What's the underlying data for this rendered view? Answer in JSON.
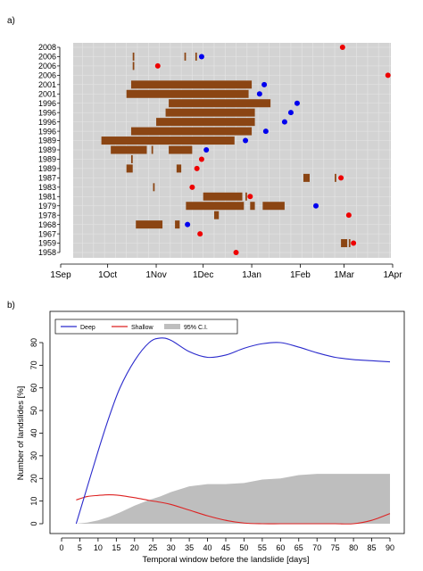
{
  "panel_labels": {
    "a": "a)",
    "b": "b)"
  },
  "colors": {
    "bar": "#8B4513",
    "bar_stripe": "#6b3210",
    "deep_point": "#0000ee",
    "shallow_point": "#ee0000",
    "panel_a_bg": "#d3d3d3",
    "panel_a_grid": "#e6e6e6",
    "deep_line": "#2a2acc",
    "shallow_line": "#dd2222",
    "ci_fill": "#bebebe"
  },
  "chart_data": [
    {
      "type": "timeline",
      "panel": "a",
      "x_axis_ticks": [
        "1Sep",
        "1Oct",
        "1Nov",
        "1Dec",
        "1Jan",
        "1Feb",
        "1Mar",
        "1Apr"
      ],
      "x_axis_tick_dates": [
        "Sep 1",
        "Oct 1",
        "Nov 1",
        "Dec 1",
        "Jan 1",
        "Feb 1",
        "Mar 1",
        "Apr 1"
      ],
      "xlim": [
        "Sep 1",
        "Apr 10"
      ],
      "grid": true,
      "rows": [
        {
          "year": "2008",
          "bars": [],
          "point": {
            "date": "Feb 28",
            "type": "shallow"
          }
        },
        {
          "year": "2006",
          "bars": [
            [
              "Oct 17",
              "Oct 18"
            ],
            [
              "Nov 19",
              "Nov 20"
            ],
            [
              "Nov 26",
              "Nov 27"
            ]
          ],
          "point": {
            "date": "Nov 30",
            "type": "deep"
          }
        },
        {
          "year": "2006",
          "bars": [
            [
              "Oct 17",
              "Oct 18"
            ]
          ],
          "point": {
            "date": "Nov 2",
            "type": "shallow"
          }
        },
        {
          "year": "2006",
          "bars": [],
          "point": {
            "date": "Mar 29",
            "type": "shallow"
          }
        },
        {
          "year": "2001",
          "bars": [
            [
              "Oct 16",
              "Jan 1"
            ]
          ],
          "point": {
            "date": "Jan 9",
            "type": "deep"
          }
        },
        {
          "year": "2001",
          "bars": [
            [
              "Oct 13",
              "Dec 30"
            ]
          ],
          "point": {
            "date": "Jan 6",
            "type": "deep"
          }
        },
        {
          "year": "1996",
          "bars": [
            [
              "Nov 9",
              "Jan 13"
            ]
          ],
          "point": {
            "date": "Jan 30",
            "type": "deep"
          }
        },
        {
          "year": "1996",
          "bars": [
            [
              "Nov 7",
              "Jan 3"
            ]
          ],
          "point": {
            "date": "Jan 26",
            "type": "deep"
          }
        },
        {
          "year": "1996",
          "bars": [
            [
              "Nov 1",
              "Jan 3"
            ]
          ],
          "point": {
            "date": "Jan 22",
            "type": "deep"
          }
        },
        {
          "year": "1996",
          "bars": [
            [
              "Oct 16",
              "Jan 1"
            ]
          ],
          "point": {
            "date": "Jan 10",
            "type": "deep"
          }
        },
        {
          "year": "1989",
          "bars": [
            [
              "Sep 27",
              "Dec 21"
            ]
          ],
          "point": {
            "date": "Dec 28",
            "type": "deep"
          }
        },
        {
          "year": "1989",
          "bars": [
            [
              "Oct 3",
              "Oct 26"
            ],
            [
              "Oct 29",
              "Oct 30"
            ],
            [
              "Nov 9",
              "Nov 24"
            ]
          ],
          "point": {
            "date": "Dec 3",
            "type": "deep"
          }
        },
        {
          "year": "1989",
          "bars": [
            [
              "Oct 16",
              "Oct 17"
            ]
          ],
          "point": {
            "date": "Nov 30",
            "type": "shallow"
          }
        },
        {
          "year": "1989",
          "bars": [
            [
              "Oct 13",
              "Oct 17"
            ],
            [
              "Nov 14",
              "Nov 17"
            ]
          ],
          "point": {
            "date": "Nov 27",
            "type": "shallow"
          }
        },
        {
          "year": "1987",
          "bars": [
            [
              "Feb 3",
              "Feb 7"
            ],
            [
              "Feb 23",
              "Feb 24"
            ]
          ],
          "point": {
            "date": "Feb 27",
            "type": "shallow"
          }
        },
        {
          "year": "1983",
          "bars": [
            [
              "Oct 30",
              "Oct 31"
            ]
          ],
          "point": {
            "date": "Nov 24",
            "type": "shallow"
          }
        },
        {
          "year": "1981",
          "bars": [
            [
              "Dec 1",
              "Dec 26"
            ],
            [
              "Dec 28",
              "Dec 29"
            ]
          ],
          "point": {
            "date": "Dec 31",
            "type": "shallow"
          }
        },
        {
          "year": "1979",
          "bars": [
            [
              "Nov 20",
              "Dec 27"
            ],
            [
              "Dec 31",
              "Jan 3"
            ],
            [
              "Jan 8",
              "Jan 22"
            ]
          ],
          "point": {
            "date": "Feb 11",
            "type": "deep"
          }
        },
        {
          "year": "1978",
          "bars": [
            [
              "Dec 8",
              "Dec 11"
            ]
          ],
          "point": {
            "date": "Mar 4",
            "type": "shallow"
          }
        },
        {
          "year": "1968",
          "bars": [
            [
              "Oct 19",
              "Nov 5"
            ],
            [
              "Nov 13",
              "Nov 16"
            ]
          ],
          "point": {
            "date": "Nov 21",
            "type": "deep"
          }
        },
        {
          "year": "1967",
          "bars": [],
          "point": {
            "date": "Nov 29",
            "type": "shallow"
          }
        },
        {
          "year": "1959",
          "bars": [
            [
              "Feb 27",
              "Mar 3"
            ],
            [
              "Mar 4",
              "Mar 5"
            ]
          ],
          "point": {
            "date": "Mar 7",
            "type": "shallow"
          }
        },
        {
          "year": "1958",
          "bars": [],
          "point": {
            "date": "Dec 22",
            "type": "shallow"
          }
        }
      ]
    },
    {
      "type": "area",
      "panel": "b",
      "xlabel": "Temporal window before the landslide [days]",
      "ylabel": "Number of landslides [%]",
      "xlim": [
        0,
        90
      ],
      "ylim": [
        0,
        85
      ],
      "x_ticks": [
        0,
        5,
        10,
        15,
        20,
        25,
        30,
        35,
        40,
        45,
        50,
        55,
        60,
        65,
        70,
        75,
        80,
        85,
        90
      ],
      "y_ticks": [
        0,
        10,
        20,
        30,
        40,
        50,
        60,
        70,
        80
      ],
      "grid": false,
      "legend_position": "top-left",
      "legend": {
        "deep": "Deep",
        "shallow": "Shallow",
        "ci": "95% C.I."
      },
      "x": [
        4,
        7,
        10,
        13,
        16,
        20,
        24,
        27,
        30,
        35,
        40,
        45,
        50,
        55,
        60,
        65,
        70,
        75,
        80,
        85,
        90
      ],
      "series": [
        {
          "name": "Deep",
          "values": [
            0,
            16,
            32,
            47,
            60,
            72,
            80,
            82,
            81,
            76,
            73.5,
            74.5,
            77.5,
            79.5,
            80,
            78,
            75.5,
            73.5,
            72.5,
            72,
            71.5
          ]
        },
        {
          "name": "Shallow",
          "values": [
            10.5,
            12,
            12.5,
            12.8,
            12.5,
            11.5,
            10.3,
            9.5,
            8.5,
            6,
            3.5,
            1.5,
            0.3,
            0,
            0,
            0,
            0,
            0,
            0,
            1.5,
            4.5
          ]
        },
        {
          "name": "95% C.I.",
          "values": [
            0,
            0.5,
            1.5,
            3,
            5,
            8,
            10.5,
            12,
            14,
            16.5,
            17.5,
            17.5,
            18,
            19.5,
            20,
            21.5,
            22,
            22,
            22,
            22,
            22
          ]
        }
      ]
    }
  ]
}
